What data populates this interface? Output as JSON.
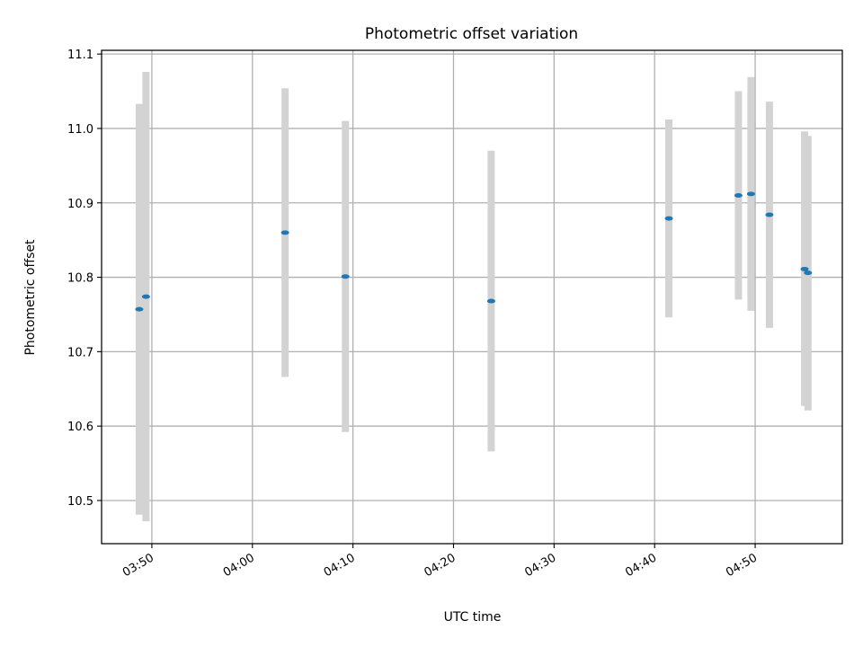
{
  "chart_data": {
    "type": "scatter",
    "title": "Photometric offset variation",
    "xlabel": "UTC time",
    "ylabel": "Photometric offset",
    "xlim": [
      "03:45:00",
      "04:58:40"
    ],
    "ylim": [
      10.442,
      11.105
    ],
    "x_ticks": [
      "03:50",
      "04:00",
      "04:10",
      "04:20",
      "04:30",
      "04:40",
      "04:50"
    ],
    "y_ticks": [
      "10.5",
      "10.6",
      "10.7",
      "10.8",
      "10.9",
      "11.0",
      "11.1"
    ],
    "grid": true,
    "colors": {
      "points": "#1f77b4",
      "error_bars": "#d3d3d3",
      "grid": "#b0b0b0"
    },
    "points": [
      {
        "time": "03:48:45",
        "value": 10.757,
        "err_low": 10.481,
        "err_high": 11.033
      },
      {
        "time": "03:49:25",
        "value": 10.774,
        "err_low": 10.472,
        "err_high": 11.076
      },
      {
        "time": "04:03:15",
        "value": 10.86,
        "err_low": 10.666,
        "err_high": 11.054
      },
      {
        "time": "04:09:15",
        "value": 10.801,
        "err_low": 10.592,
        "err_high": 11.01
      },
      {
        "time": "04:23:45",
        "value": 10.768,
        "err_low": 10.566,
        "err_high": 10.97
      },
      {
        "time": "04:41:25",
        "value": 10.879,
        "err_low": 10.746,
        "err_high": 11.012
      },
      {
        "time": "04:48:20",
        "value": 10.91,
        "err_low": 10.77,
        "err_high": 11.05
      },
      {
        "time": "04:49:35",
        "value": 10.912,
        "err_low": 10.755,
        "err_high": 11.069
      },
      {
        "time": "04:51:25",
        "value": 10.884,
        "err_low": 10.732,
        "err_high": 11.036
      },
      {
        "time": "04:54:55",
        "value": 10.811,
        "err_low": 10.627,
        "err_high": 10.996
      },
      {
        "time": "04:55:15",
        "value": 10.806,
        "err_low": 10.621,
        "err_high": 10.99
      }
    ]
  }
}
